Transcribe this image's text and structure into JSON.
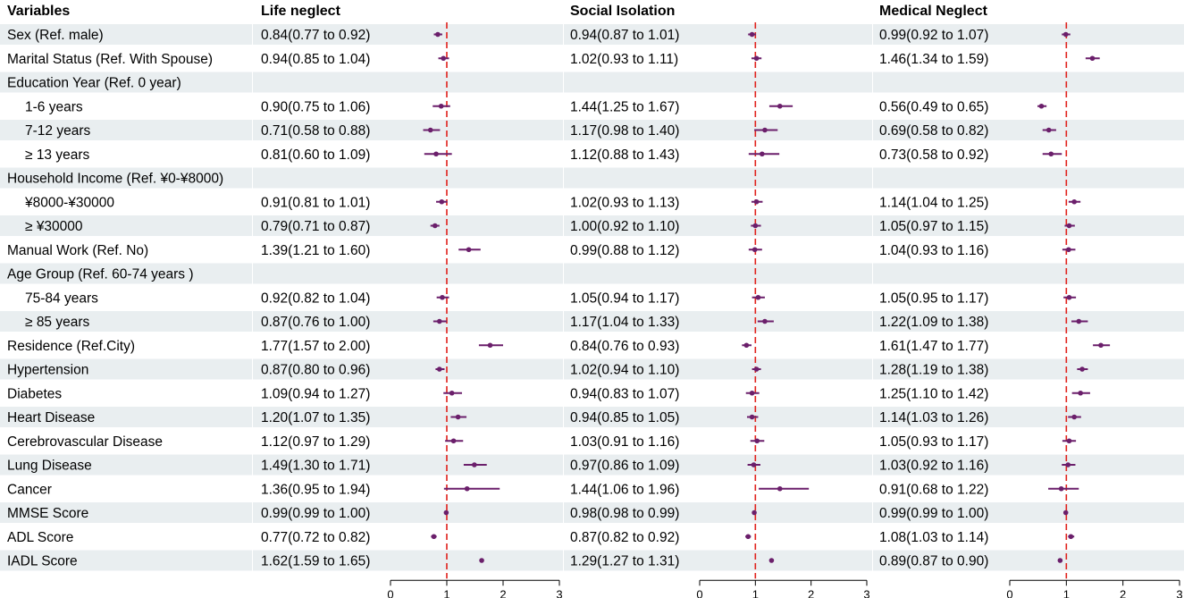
{
  "chart_data": {
    "type": "forest",
    "header_variables": "Variables",
    "groups": [
      {
        "key": "life",
        "title": "Life neglect",
        "xlim": [
          0,
          3
        ],
        "xticks": [
          0,
          1,
          2,
          3
        ],
        "reference": 1
      },
      {
        "key": "social",
        "title": "Social Isolation",
        "xlim": [
          0,
          3
        ],
        "xticks": [
          0,
          1,
          2,
          3
        ],
        "reference": 1
      },
      {
        "key": "medical",
        "title": "Medical Neglect",
        "xlim": [
          0,
          3
        ],
        "xticks": [
          0,
          1,
          2,
          3
        ],
        "reference": 1
      }
    ],
    "rows": [
      {
        "label": "Sex (Ref. male)",
        "indent": false,
        "life": {
          "text": "0.84(0.77 to 0.92)",
          "or": 0.84,
          "lo": 0.77,
          "hi": 0.92
        },
        "social": {
          "text": "0.94(0.87 to 1.01)",
          "or": 0.94,
          "lo": 0.87,
          "hi": 1.01
        },
        "medical": {
          "text": "0.99(0.92 to 1.07)",
          "or": 0.99,
          "lo": 0.92,
          "hi": 1.07
        }
      },
      {
        "label": "Marital Status (Ref. With Spouse)",
        "indent": false,
        "life": {
          "text": "0.94(0.85 to 1.04)",
          "or": 0.94,
          "lo": 0.85,
          "hi": 1.04
        },
        "social": {
          "text": "1.02(0.93 to 1.11)",
          "or": 1.02,
          "lo": 0.93,
          "hi": 1.11
        },
        "medical": {
          "text": "1.46(1.34 to 1.59)",
          "or": 1.46,
          "lo": 1.34,
          "hi": 1.59
        }
      },
      {
        "label": "Education Year (Ref. 0 year)",
        "indent": false,
        "life": null,
        "social": null,
        "medical": null
      },
      {
        "label": "1-6 years",
        "indent": true,
        "life": {
          "text": "0.90(0.75 to 1.06)",
          "or": 0.9,
          "lo": 0.75,
          "hi": 1.06
        },
        "social": {
          "text": "1.44(1.25 to 1.67)",
          "or": 1.44,
          "lo": 1.25,
          "hi": 1.67
        },
        "medical": {
          "text": "0.56(0.49 to 0.65)",
          "or": 0.56,
          "lo": 0.49,
          "hi": 0.65
        }
      },
      {
        "label": "7-12 years",
        "indent": true,
        "life": {
          "text": "0.71(0.58 to 0.88)",
          "or": 0.71,
          "lo": 0.58,
          "hi": 0.88
        },
        "social": {
          "text": "1.17(0.98 to 1.40)",
          "or": 1.17,
          "lo": 0.98,
          "hi": 1.4
        },
        "medical": {
          "text": "0.69(0.58 to 0.82)",
          "or": 0.69,
          "lo": 0.58,
          "hi": 0.82
        }
      },
      {
        "label": "≥ 13 years",
        "indent": true,
        "life": {
          "text": "0.81(0.60 to 1.09)",
          "or": 0.81,
          "lo": 0.6,
          "hi": 1.09
        },
        "social": {
          "text": "1.12(0.88 to 1.43)",
          "or": 1.12,
          "lo": 0.88,
          "hi": 1.43
        },
        "medical": {
          "text": "0.73(0.58 to 0.92)",
          "or": 0.73,
          "lo": 0.58,
          "hi": 0.92
        }
      },
      {
        "label": "Household Income (Ref. ¥0-¥8000)",
        "indent": false,
        "life": null,
        "social": null,
        "medical": null
      },
      {
        "label": "¥8000-¥30000",
        "indent": true,
        "life": {
          "text": "0.91(0.81 to 1.01)",
          "or": 0.91,
          "lo": 0.81,
          "hi": 1.01
        },
        "social": {
          "text": "1.02(0.93 to 1.13)",
          "or": 1.02,
          "lo": 0.93,
          "hi": 1.13
        },
        "medical": {
          "text": "1.14(1.04 to 1.25)",
          "or": 1.14,
          "lo": 1.04,
          "hi": 1.25
        }
      },
      {
        "label": "≥ ¥30000",
        "indent": true,
        "life": {
          "text": "0.79(0.71 to 0.87)",
          "or": 0.79,
          "lo": 0.71,
          "hi": 0.87
        },
        "social": {
          "text": "1.00(0.92 to 1.10)",
          "or": 1.0,
          "lo": 0.92,
          "hi": 1.1
        },
        "medical": {
          "text": "1.05(0.97 to 1.15)",
          "or": 1.05,
          "lo": 0.97,
          "hi": 1.15
        }
      },
      {
        "label": "Manual Work (Ref. No)",
        "indent": false,
        "life": {
          "text": "1.39(1.21 to 1.60)",
          "or": 1.39,
          "lo": 1.21,
          "hi": 1.6
        },
        "social": {
          "text": "0.99(0.88 to 1.12)",
          "or": 0.99,
          "lo": 0.88,
          "hi": 1.12
        },
        "medical": {
          "text": "1.04(0.93 to 1.16)",
          "or": 1.04,
          "lo": 0.93,
          "hi": 1.16
        }
      },
      {
        "label": "Age Group (Ref. 60-74 years )",
        "indent": false,
        "life": null,
        "social": null,
        "medical": null
      },
      {
        "label": "75-84 years",
        "indent": true,
        "life": {
          "text": "0.92(0.82 to 1.04)",
          "or": 0.92,
          "lo": 0.82,
          "hi": 1.04
        },
        "social": {
          "text": "1.05(0.94 to 1.17)",
          "or": 1.05,
          "lo": 0.94,
          "hi": 1.17
        },
        "medical": {
          "text": "1.05(0.95 to 1.17)",
          "or": 1.05,
          "lo": 0.95,
          "hi": 1.17
        }
      },
      {
        "label": "≥ 85 years",
        "indent": true,
        "life": {
          "text": "0.87(0.76 to 1.00)",
          "or": 0.87,
          "lo": 0.76,
          "hi": 1.0
        },
        "social": {
          "text": "1.17(1.04 to 1.33)",
          "or": 1.17,
          "lo": 1.04,
          "hi": 1.33
        },
        "medical": {
          "text": "1.22(1.09 to 1.38)",
          "or": 1.22,
          "lo": 1.09,
          "hi": 1.38
        }
      },
      {
        "label": "Residence (Ref.City)",
        "indent": false,
        "life": {
          "text": "1.77(1.57 to 2.00)",
          "or": 1.77,
          "lo": 1.57,
          "hi": 2.0
        },
        "social": {
          "text": "0.84(0.76 to 0.93)",
          "or": 0.84,
          "lo": 0.76,
          "hi": 0.93
        },
        "medical": {
          "text": "1.61(1.47 to 1.77)",
          "or": 1.61,
          "lo": 1.47,
          "hi": 1.77
        }
      },
      {
        "label": "Hypertension",
        "indent": false,
        "life": {
          "text": "0.87(0.80 to 0.96)",
          "or": 0.87,
          "lo": 0.8,
          "hi": 0.96
        },
        "social": {
          "text": "1.02(0.94 to 1.10)",
          "or": 1.02,
          "lo": 0.94,
          "hi": 1.1
        },
        "medical": {
          "text": "1.28(1.19 to 1.38)",
          "or": 1.28,
          "lo": 1.19,
          "hi": 1.38
        }
      },
      {
        "label": "Diabetes",
        "indent": false,
        "life": {
          "text": "1.09(0.94 to 1.27)",
          "or": 1.09,
          "lo": 0.94,
          "hi": 1.27
        },
        "social": {
          "text": "0.94(0.83 to 1.07)",
          "or": 0.94,
          "lo": 0.83,
          "hi": 1.07
        },
        "medical": {
          "text": "1.25(1.10 to 1.42)",
          "or": 1.25,
          "lo": 1.1,
          "hi": 1.42
        }
      },
      {
        "label": "Heart Disease",
        "indent": false,
        "life": {
          "text": "1.20(1.07 to 1.35)",
          "or": 1.2,
          "lo": 1.07,
          "hi": 1.35
        },
        "social": {
          "text": "0.94(0.85 to 1.05)",
          "or": 0.94,
          "lo": 0.85,
          "hi": 1.05
        },
        "medical": {
          "text": "1.14(1.03 to 1.26)",
          "or": 1.14,
          "lo": 1.03,
          "hi": 1.26
        }
      },
      {
        "label": "Cerebrovascular Disease",
        "indent": false,
        "life": {
          "text": "1.12(0.97 to 1.29)",
          "or": 1.12,
          "lo": 0.97,
          "hi": 1.29
        },
        "social": {
          "text": "1.03(0.91 to 1.16)",
          "or": 1.03,
          "lo": 0.91,
          "hi": 1.16
        },
        "medical": {
          "text": "1.05(0.93 to 1.17)",
          "or": 1.05,
          "lo": 0.93,
          "hi": 1.17
        }
      },
      {
        "label": "Lung Disease",
        "indent": false,
        "life": {
          "text": "1.49(1.30 to 1.71)",
          "or": 1.49,
          "lo": 1.3,
          "hi": 1.71
        },
        "social": {
          "text": "0.97(0.86 to 1.09)",
          "or": 0.97,
          "lo": 0.86,
          "hi": 1.09
        },
        "medical": {
          "text": "1.03(0.92 to 1.16)",
          "or": 1.03,
          "lo": 0.92,
          "hi": 1.16
        }
      },
      {
        "label": "Cancer",
        "indent": false,
        "life": {
          "text": "1.36(0.95 to 1.94)",
          "or": 1.36,
          "lo": 0.95,
          "hi": 1.94
        },
        "social": {
          "text": "1.44(1.06 to 1.96)",
          "or": 1.44,
          "lo": 1.06,
          "hi": 1.96
        },
        "medical": {
          "text": "0.91(0.68 to 1.22)",
          "or": 0.91,
          "lo": 0.68,
          "hi": 1.22
        }
      },
      {
        "label": "MMSE Score",
        "indent": false,
        "life": {
          "text": "0.99(0.99 to 1.00)",
          "or": 0.99,
          "lo": 0.99,
          "hi": 1.0
        },
        "social": {
          "text": "0.98(0.98 to 0.99)",
          "or": 0.98,
          "lo": 0.98,
          "hi": 0.99
        },
        "medical": {
          "text": "0.99(0.99 to 1.00)",
          "or": 0.99,
          "lo": 0.99,
          "hi": 1.0
        }
      },
      {
        "label": "ADL Score",
        "indent": false,
        "life": {
          "text": "0.77(0.72 to 0.82)",
          "or": 0.77,
          "lo": 0.72,
          "hi": 0.82
        },
        "social": {
          "text": "0.87(0.82 to 0.92)",
          "or": 0.87,
          "lo": 0.82,
          "hi": 0.92
        },
        "medical": {
          "text": "1.08(1.03 to 1.14)",
          "or": 1.08,
          "lo": 1.03,
          "hi": 1.14
        }
      },
      {
        "label": "IADL Score",
        "indent": false,
        "life": {
          "text": "1.62(1.59 to 1.65)",
          "or": 1.62,
          "lo": 1.59,
          "hi": 1.65
        },
        "social": {
          "text": "1.29(1.27 to 1.31)",
          "or": 1.29,
          "lo": 1.27,
          "hi": 1.31
        },
        "medical": {
          "text": "0.89(0.87 to 0.90)",
          "or": 0.89,
          "lo": 0.87,
          "hi": 0.9
        }
      }
    ]
  },
  "colors": {
    "band": "#e9eef0",
    "marker": "#6b1f6b",
    "reference_line": "#e0201b",
    "axis": "#000000",
    "text": "#000000"
  }
}
